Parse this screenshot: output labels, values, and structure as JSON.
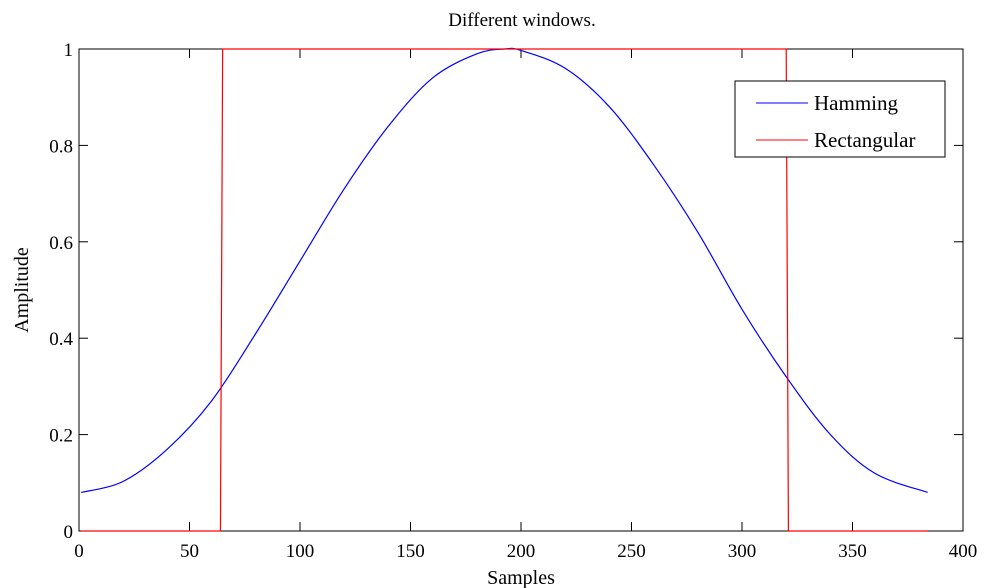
{
  "chart_data": {
    "type": "line",
    "title": "Different windows.",
    "xlabel": "Samples",
    "ylabel": "Amplitude",
    "xlim": [
      0,
      400
    ],
    "ylim": [
      0,
      1
    ],
    "xticks": [
      0,
      50,
      100,
      150,
      200,
      250,
      300,
      350,
      400
    ],
    "yticks": [
      0,
      0.2,
      0.4,
      0.6,
      0.8,
      1
    ],
    "ytick_labels": [
      "0",
      "0.2",
      "0.4",
      "0.6",
      "0.8",
      "1"
    ],
    "grid": false,
    "legend_position": "top-right",
    "series": [
      {
        "name": "Hamming",
        "color": "#0000ff",
        "x": [
          1,
          20,
          40,
          60,
          80,
          100,
          120,
          140,
          160,
          180,
          192.5,
          200,
          220,
          240,
          260,
          280,
          300,
          320,
          340,
          360,
          384
        ],
        "y": [
          0.08,
          0.103,
          0.17,
          0.27,
          0.41,
          0.56,
          0.71,
          0.84,
          0.94,
          0.99,
          1.0,
          0.997,
          0.96,
          0.88,
          0.76,
          0.62,
          0.46,
          0.32,
          0.2,
          0.12,
          0.08
        ]
      },
      {
        "name": "Rectangular",
        "color": "#ff0000",
        "x": [
          1,
          64,
          65,
          320,
          321,
          384
        ],
        "y": [
          0,
          0,
          1,
          1,
          0,
          0
        ]
      }
    ]
  }
}
